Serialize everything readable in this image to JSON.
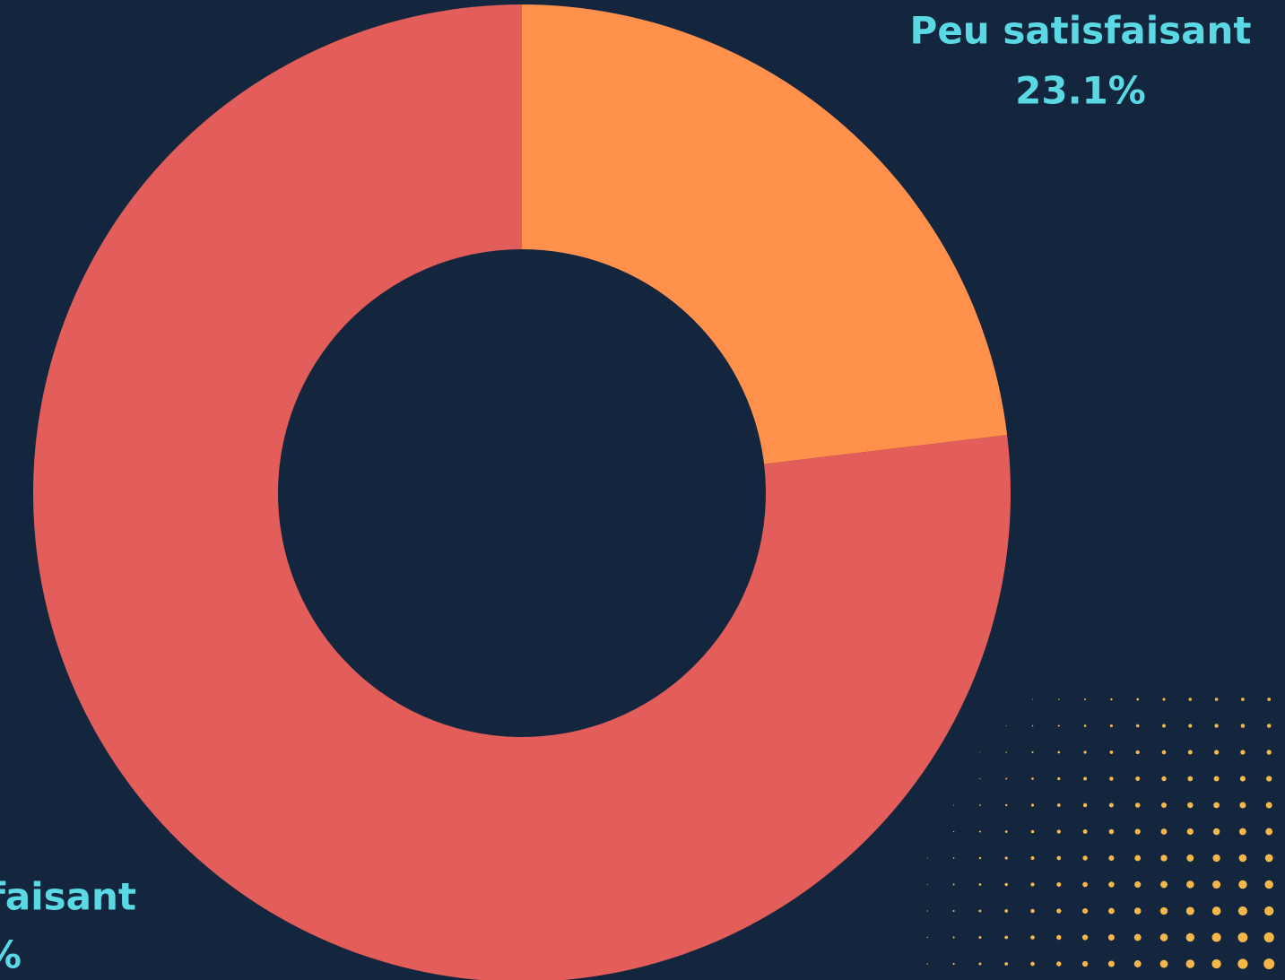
{
  "chart_data": {
    "type": "donut",
    "categories": [
      "Peu satisfaisant",
      "faisant"
    ],
    "values": [
      23.1,
      76.9
    ],
    "value_labels": [
      "23.1%",
      "%"
    ],
    "colors": [
      "#ff914d",
      "#e35d5a"
    ]
  }
}
